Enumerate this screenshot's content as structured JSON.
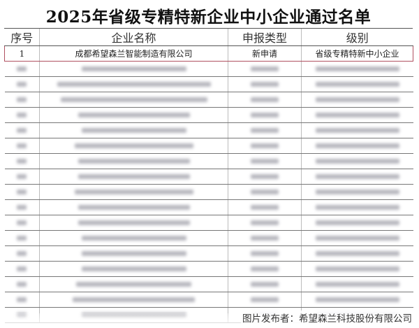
{
  "document": {
    "title": "2025年省级专精特新企业中小企业通过名单",
    "columns": [
      "序号",
      "企业名称",
      "申报类型",
      "级别"
    ],
    "rows": [
      {
        "index": "1",
        "company": "成都希望森兰智能制造有限公司",
        "type": "新申请",
        "level": "省级专精特新中小企业"
      }
    ],
    "highlight_color": "#b05060"
  },
  "footer": {
    "credit": "图片发布者：希望森兰科技股份有限公司"
  }
}
